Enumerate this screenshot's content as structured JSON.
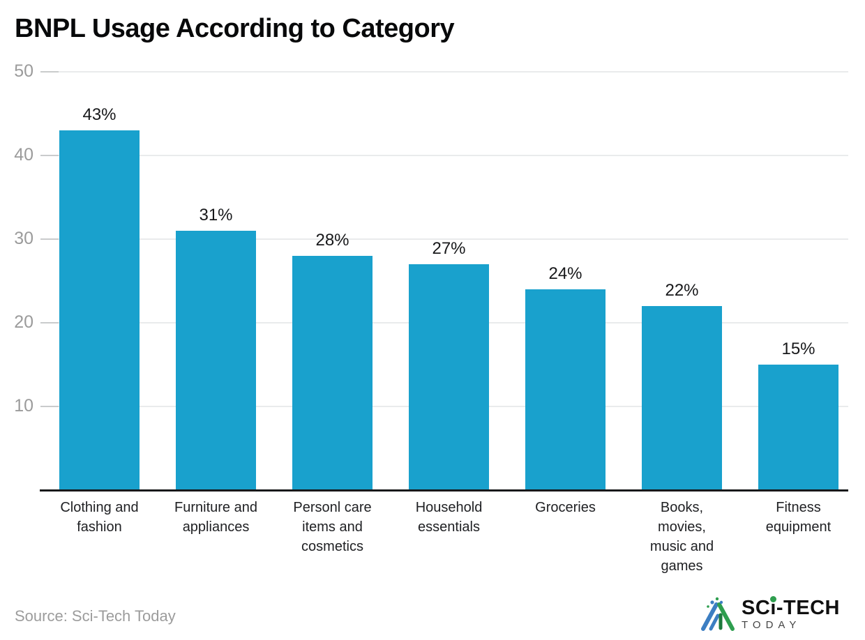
{
  "header": {
    "title": "BNPL Usage According to Category"
  },
  "chart_data": {
    "type": "bar",
    "title": "BNPL Usage According to Category",
    "categories": [
      "Clothing and fashion",
      "Furniture and appliances",
      "Personl care items and cosmetics",
      "Household essentials",
      "Groceries",
      "Books, movies, music and games",
      "Fitness equipment"
    ],
    "categories_display": [
      "Clothing and\nfashion",
      "Furniture and\nappliances",
      "Personl care\nitems and\ncosmetics",
      "Household\nessentials",
      "Groceries",
      "Books,\nmovies,\nmusic and\ngames",
      "Fitness\nequipment"
    ],
    "values": [
      43,
      31,
      28,
      27,
      24,
      22,
      15
    ],
    "value_labels": [
      "43%",
      "31%",
      "28%",
      "27%",
      "24%",
      "22%",
      "15%"
    ],
    "xlabel": "",
    "ylabel": "",
    "ylim": [
      0,
      50
    ],
    "yticks": [
      50,
      40,
      30,
      20,
      10
    ],
    "grid": "horizontal",
    "legend": "none",
    "bar_color": "#19a1cd",
    "gridline_color": "#e9ebec",
    "axis_color": "#17181a"
  },
  "footer": {
    "source": "Source: Sci-Tech Today"
  },
  "logo": {
    "brand_prefix": "SC",
    "brand_i": "i",
    "brand_suffix": "-TECH",
    "brand_line2": "TODAY",
    "mark_blue": "#3c7ec2",
    "mark_green": "#2e9e4f"
  }
}
